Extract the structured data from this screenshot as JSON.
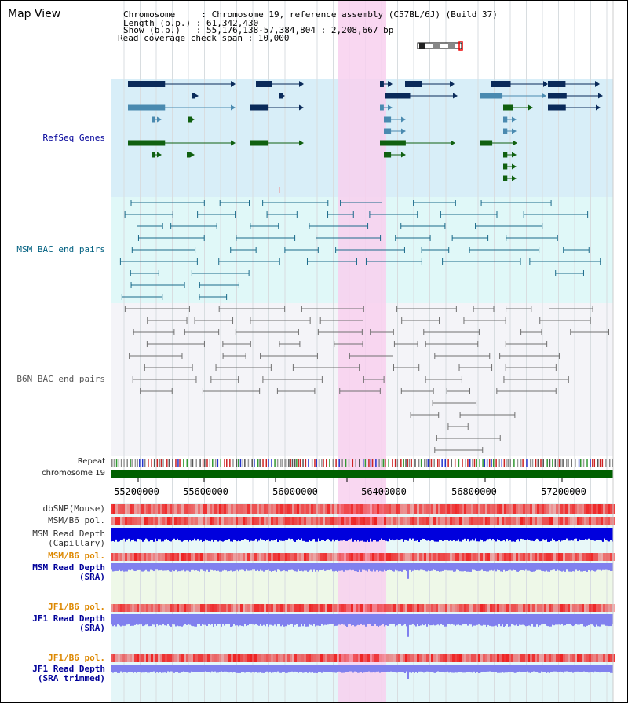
{
  "map_view": {
    "title": "Map View",
    "info_lines": [
      "Chromosome     : Chromosome 19, reference assembly (C57BL/6J) (Build 37)",
      "Length (b.p.) : 61,342,430",
      "Show (b.p.)   : 55,176,138-57,384,804 : 2,208,667 bp",
      "Read coverage check span : 10,000"
    ]
  },
  "tracks": {
    "refseq": "RefSeq Genes",
    "msm_bac": "MSM BAC end pairs",
    "b6n_bac": "B6N BAC end pairs",
    "repeat": "Repeat",
    "chromosome": "chromosome 19",
    "dbsnp": "dbSNP(Mouse)",
    "msm_b6_pol_1": "MSM/B6 pol.",
    "msm_read_depth_cap_1": "MSM Read Depth",
    "msm_read_depth_cap_2": "(Capillary)",
    "msm_b6_pol_2": "MSM/B6 pol.",
    "msm_read_depth_sra_1": "MSM Read Depth",
    "msm_read_depth_sra_2": "(SRA)",
    "jf1_b6_pol_1": "JF1/B6 pol.",
    "jf1_read_depth_sra_1": "JF1 Read Depth",
    "jf1_read_depth_sra_2": "(SRA)",
    "jf1_b6_pol_2": "JF1/B6 pol.",
    "jf1_read_depth_trim_1": "JF1 Read Depth",
    "jf1_read_depth_trim_2": "(SRA trimmed)"
  },
  "axis_ticks": [
    "55200000",
    "55600000",
    "56000000",
    "56400000",
    "56800000",
    "57200000"
  ],
  "colors": {
    "highlight": "#f8d8f0",
    "refseq_bg": "#d8eef8",
    "msm_bg": "#e0f8f8",
    "b6n_bg": "#f4f4f8",
    "gene_navy": "#0a2a5a",
    "gene_blue": "#4a8ab0",
    "gene_green": "#106010",
    "msm_line": "#1a6a8a",
    "b6n_line": "#707070",
    "chrom_green": "#006000",
    "label_black": "#222222",
    "label_navy": "#000099",
    "label_teal": "#006080",
    "label_gray": "#555555",
    "label_orange": "#dd8800",
    "depth_blue": "#0000dd",
    "depth_light": "#8080ee",
    "pol_red": "#ee2222"
  }
}
